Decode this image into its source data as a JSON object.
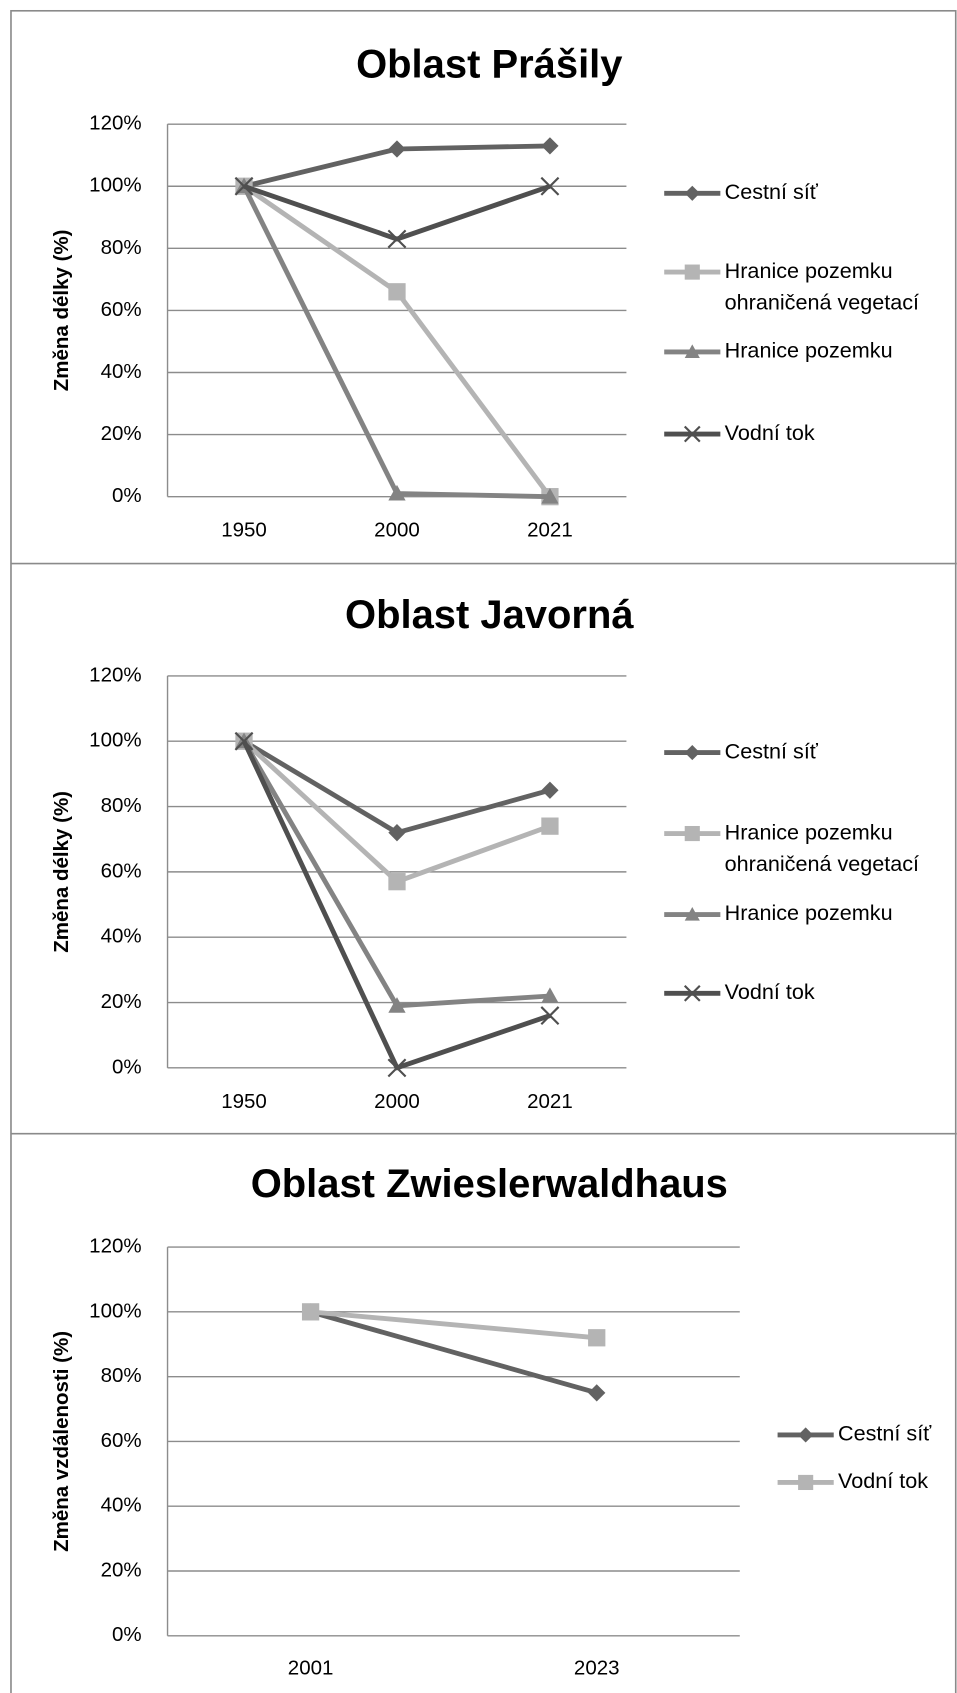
{
  "chart_data": [
    {
      "type": "line",
      "title": "Oblast Prášily",
      "y_label": "Změna délky (%)",
      "categories": [
        "1950",
        "2000",
        "2021"
      ],
      "ylim": [
        0,
        120
      ],
      "yticks": [
        {
          "value": 0,
          "label": "0%"
        },
        {
          "value": 20,
          "label": "20%"
        },
        {
          "value": 40,
          "label": "40%"
        },
        {
          "value": 60,
          "label": "60%"
        },
        {
          "value": 80,
          "label": "80%"
        },
        {
          "value": 100,
          "label": "100%"
        },
        {
          "value": 120,
          "label": "120%"
        }
      ],
      "grid": true,
      "legend": "right",
      "series": [
        {
          "name": "Cestní síť",
          "color": "#626262",
          "marker": "diamond",
          "values": [
            100,
            112,
            113
          ]
        },
        {
          "name": "Hranice pozemku ohraničená vegetací",
          "color": "#b4b4b4",
          "marker": "square",
          "values": [
            100,
            66,
            0
          ]
        },
        {
          "name": "Hranice pozemku",
          "color": "#838383",
          "marker": "triangle",
          "values": [
            100,
            1,
            0
          ]
        },
        {
          "name": "Vodní tok",
          "color": "#4f4f4f",
          "marker": "x",
          "values": [
            100,
            83,
            100
          ]
        }
      ]
    },
    {
      "type": "line",
      "title": "Oblast Javorná",
      "y_label": "Změna délky (%)",
      "categories": [
        "1950",
        "2000",
        "2021"
      ],
      "ylim": [
        0,
        120
      ],
      "yticks": [
        {
          "value": 0,
          "label": "0%"
        },
        {
          "value": 20,
          "label": "20%"
        },
        {
          "value": 40,
          "label": "40%"
        },
        {
          "value": 60,
          "label": "60%"
        },
        {
          "value": 80,
          "label": "80%"
        },
        {
          "value": 100,
          "label": "100%"
        },
        {
          "value": 120,
          "label": "120%"
        }
      ],
      "grid": true,
      "legend": "right",
      "series": [
        {
          "name": "Cestní síť",
          "color": "#626262",
          "marker": "diamond",
          "values": [
            100,
            72,
            85
          ]
        },
        {
          "name": "Hranice pozemku ohraničená vegetací",
          "color": "#b4b4b4",
          "marker": "square",
          "values": [
            100,
            57,
            74
          ]
        },
        {
          "name": "Hranice pozemku",
          "color": "#838383",
          "marker": "triangle",
          "values": [
            100,
            19,
            22
          ]
        },
        {
          "name": "Vodní tok",
          "color": "#4f4f4f",
          "marker": "x",
          "values": [
            100,
            0,
            16
          ]
        }
      ]
    },
    {
      "type": "line",
      "title": "Oblast Zwieslerwaldhaus",
      "y_label": "Změna vzdálenosti (%)",
      "categories": [
        "2001",
        "2023"
      ],
      "ylim": [
        0,
        120
      ],
      "yticks": [
        {
          "value": 0,
          "label": "0%"
        },
        {
          "value": 20,
          "label": "20%"
        },
        {
          "value": 40,
          "label": "40%"
        },
        {
          "value": 60,
          "label": "60%"
        },
        {
          "value": 80,
          "label": "80%"
        },
        {
          "value": 100,
          "label": "100%"
        },
        {
          "value": 120,
          "label": "120%"
        }
      ],
      "grid": true,
      "legend": "right",
      "series": [
        {
          "name": "Cestní síť",
          "color": "#626262",
          "marker": "diamond",
          "values": [
            100,
            75
          ]
        },
        {
          "name": "Vodní tok",
          "color": "#b4b4b4",
          "marker": "square",
          "values": [
            100,
            92
          ]
        }
      ]
    }
  ]
}
